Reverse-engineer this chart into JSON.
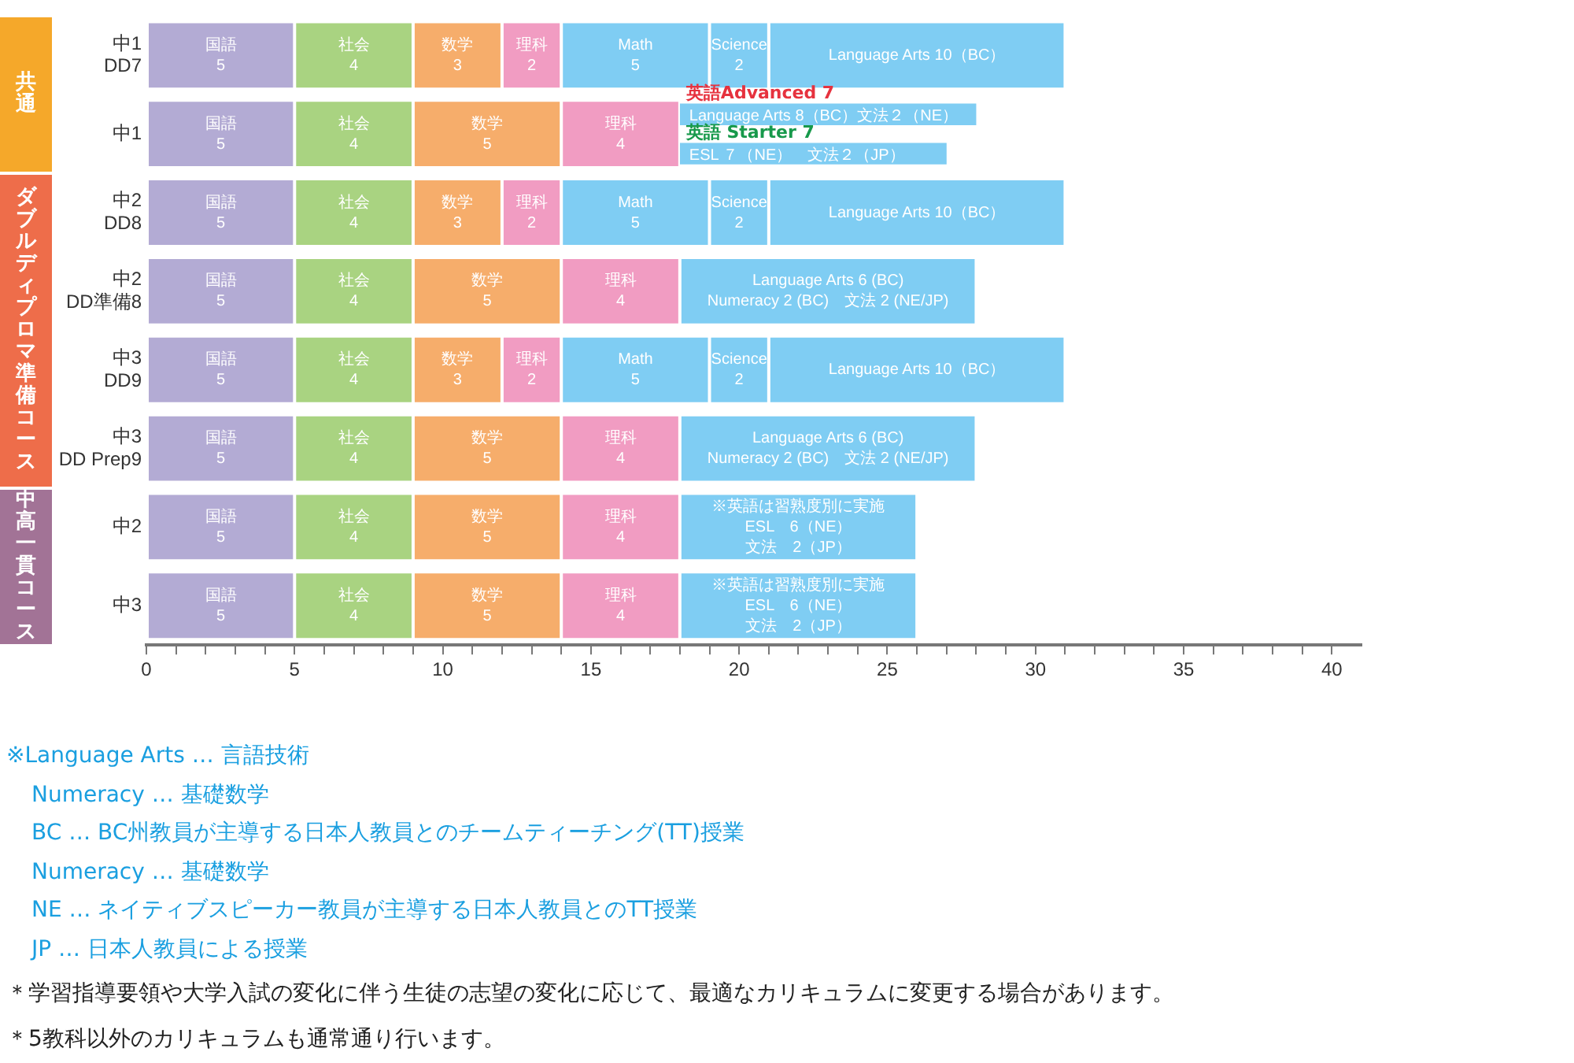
{
  "chart_data": {
    "type": "bar",
    "orientation": "horizontal",
    "categories": [
      "中1\nDD7",
      "中1",
      "中2\nDD8",
      "中2\nDD準備8",
      "中3\nDD9",
      "中3\nDD Prep9",
      "中2",
      "中3"
    ],
    "series": [
      {
        "name": "国語",
        "color": "#b3abd4",
        "values": [
          5,
          5,
          5,
          5,
          5,
          5,
          5,
          5
        ],
        "base": [
          0,
          0,
          0,
          0,
          0,
          0,
          0,
          0
        ],
        "value_labels": [
          "5",
          "5",
          "5",
          "5",
          "5",
          "5",
          "5",
          "5"
        ]
      },
      {
        "name": "社会",
        "color": "#a9d381",
        "values": [
          4,
          4,
          4,
          4,
          4,
          4,
          4,
          4
        ],
        "base": [
          5,
          5,
          5,
          5,
          5,
          5,
          5,
          5
        ],
        "value_labels": [
          "4",
          "4",
          "4",
          "4",
          "4",
          "4",
          "4",
          "4"
        ]
      },
      {
        "name": "数学",
        "color": "#f6ad6b",
        "values": [
          3,
          5,
          3,
          5,
          3,
          5,
          5,
          5
        ],
        "base": [
          9,
          9,
          9,
          9,
          9,
          9,
          9,
          9
        ],
        "value_labels": [
          "3",
          "5",
          "3",
          "5",
          "3",
          "5",
          "5",
          "5"
        ]
      },
      {
        "name": "理科",
        "color": "#f19cc2",
        "values": [
          2,
          4,
          2,
          4,
          2,
          4,
          4,
          4
        ],
        "base": [
          12,
          14,
          12,
          14,
          12,
          14,
          14,
          14
        ],
        "value_labels": [
          "2",
          "4",
          "2",
          "4",
          "2",
          "4",
          "4",
          "4"
        ]
      },
      {
        "name": "Math",
        "color": "#7fcdf3",
        "values": [
          5,
          null,
          5,
          null,
          5,
          null,
          null,
          null
        ],
        "base": [
          14,
          null,
          14,
          null,
          14,
          null,
          null,
          null
        ],
        "value_labels": [
          "5",
          null,
          "5",
          null,
          "5",
          null,
          null,
          null
        ]
      },
      {
        "name": "Science",
        "color": "#7fcdf3",
        "values": [
          2,
          null,
          2,
          null,
          2,
          null,
          null,
          null
        ],
        "base": [
          19,
          null,
          19,
          null,
          19,
          null,
          null,
          null
        ],
        "value_labels": [
          "2",
          null,
          "2",
          null,
          "2",
          null,
          null,
          null
        ]
      },
      {
        "color": "#7fcdf3",
        "values": [
          10,
          null,
          10,
          10,
          10,
          10,
          8,
          8
        ],
        "base": [
          21,
          null,
          21,
          18,
          21,
          18,
          18,
          18
        ],
        "value_labels": [
          "Language Arts 10（BC）",
          null,
          "Language Arts 10（BC）",
          "Language Arts 6 (BC)\nNumeracy 2 (BC)　文法 2 (NE/JP)",
          "Language Arts 10（BC）",
          "Language Arts 6 (BC)\nNumeracy 2 (BC)　文法 2 (NE/JP)",
          "※英語は習熟度別に実施ESL　6（NE）文法　2（JP）",
          "※英語は習熟度別に実施ESL　6（NE）文法　2（JP）"
        ]
      },
      {
        "name": "英語Advanced 7",
        "color": "#7fcdf3",
        "values": [
          null,
          10,
          null,
          null,
          null,
          null,
          null,
          null
        ],
        "base": [
          null,
          18,
          null,
          null,
          null,
          null,
          null,
          null
        ],
        "value_labels": [
          null,
          "Language Arts 8（BC）文法２（NE）",
          null,
          null,
          null,
          null,
          null,
          null
        ]
      },
      {
        "name": "英語 Starter 7",
        "color": "#7fcdf3",
        "values": [
          null,
          9,
          null,
          null,
          null,
          null,
          null,
          null
        ],
        "base": [
          null,
          18,
          null,
          null,
          null,
          null,
          null,
          null
        ],
        "value_labels": [
          null,
          "ESL ７（NE）　文法２（JP）",
          null,
          null,
          null,
          null,
          null,
          null
        ]
      }
    ],
    "xlim": [
      0,
      41
    ],
    "xticks": [
      0,
      {
        "value": 1,
        "label": null
      },
      {
        "value": 2,
        "label": null
      },
      {
        "value": 3,
        "label": null
      },
      {
        "value": 4,
        "label": null
      },
      5,
      {
        "value": 6,
        "label": null
      },
      {
        "value": 7,
        "label": null
      },
      {
        "value": 8,
        "label": null
      },
      {
        "value": 9,
        "label": null
      },
      10,
      {
        "value": 11,
        "label": null
      },
      {
        "value": 12,
        "label": null
      },
      {
        "value": 13,
        "label": null
      },
      {
        "value": 14,
        "label": null
      },
      15,
      {
        "value": 16,
        "label": null
      },
      {
        "value": 17,
        "label": null
      },
      {
        "value": 18,
        "label": null
      },
      {
        "value": 19,
        "label": null
      },
      20,
      {
        "value": 21,
        "label": null
      },
      {
        "value": 22,
        "label": null
      },
      {
        "value": 23,
        "label": null
      },
      {
        "value": 24,
        "label": null
      },
      25,
      {
        "value": 26,
        "label": null
      },
      {
        "value": 27,
        "label": null
      },
      {
        "value": 28,
        "label": null
      },
      {
        "value": 29,
        "label": null
      },
      30,
      {
        "value": 31,
        "label": null
      },
      {
        "value": 32,
        "label": null
      },
      {
        "value": 33,
        "label": null
      },
      {
        "value": 34,
        "label": null
      },
      35,
      {
        "value": 36,
        "label": null
      },
      {
        "value": 37,
        "label": null
      },
      {
        "value": 38,
        "label": null
      },
      {
        "value": 39,
        "label": null
      },
      40
    ],
    "legend": false,
    "annotations": [
      "共通",
      "ダブルディプロマ準備コース",
      "中高一貫コース",
      "※Language Arts … 言語技術",
      "Numeracy … 基礎数学",
      "BC … BC州教員が主導する日本人教員とのチームティーチング(TT)授業",
      "Numeracy … 基礎数学",
      "NE … ネイティブスピーカー教員が主導する日本人教員とのTT授業",
      "JP … 日本人教員による授業",
      "＊学習指導要領や大学入試の変化に伴う生徒の志望の変化に応じて、最適なカリキュラムに変更する場合があります。",
      "＊5教科以外のカリキュラムも通常通り行います。"
    ]
  }
}
